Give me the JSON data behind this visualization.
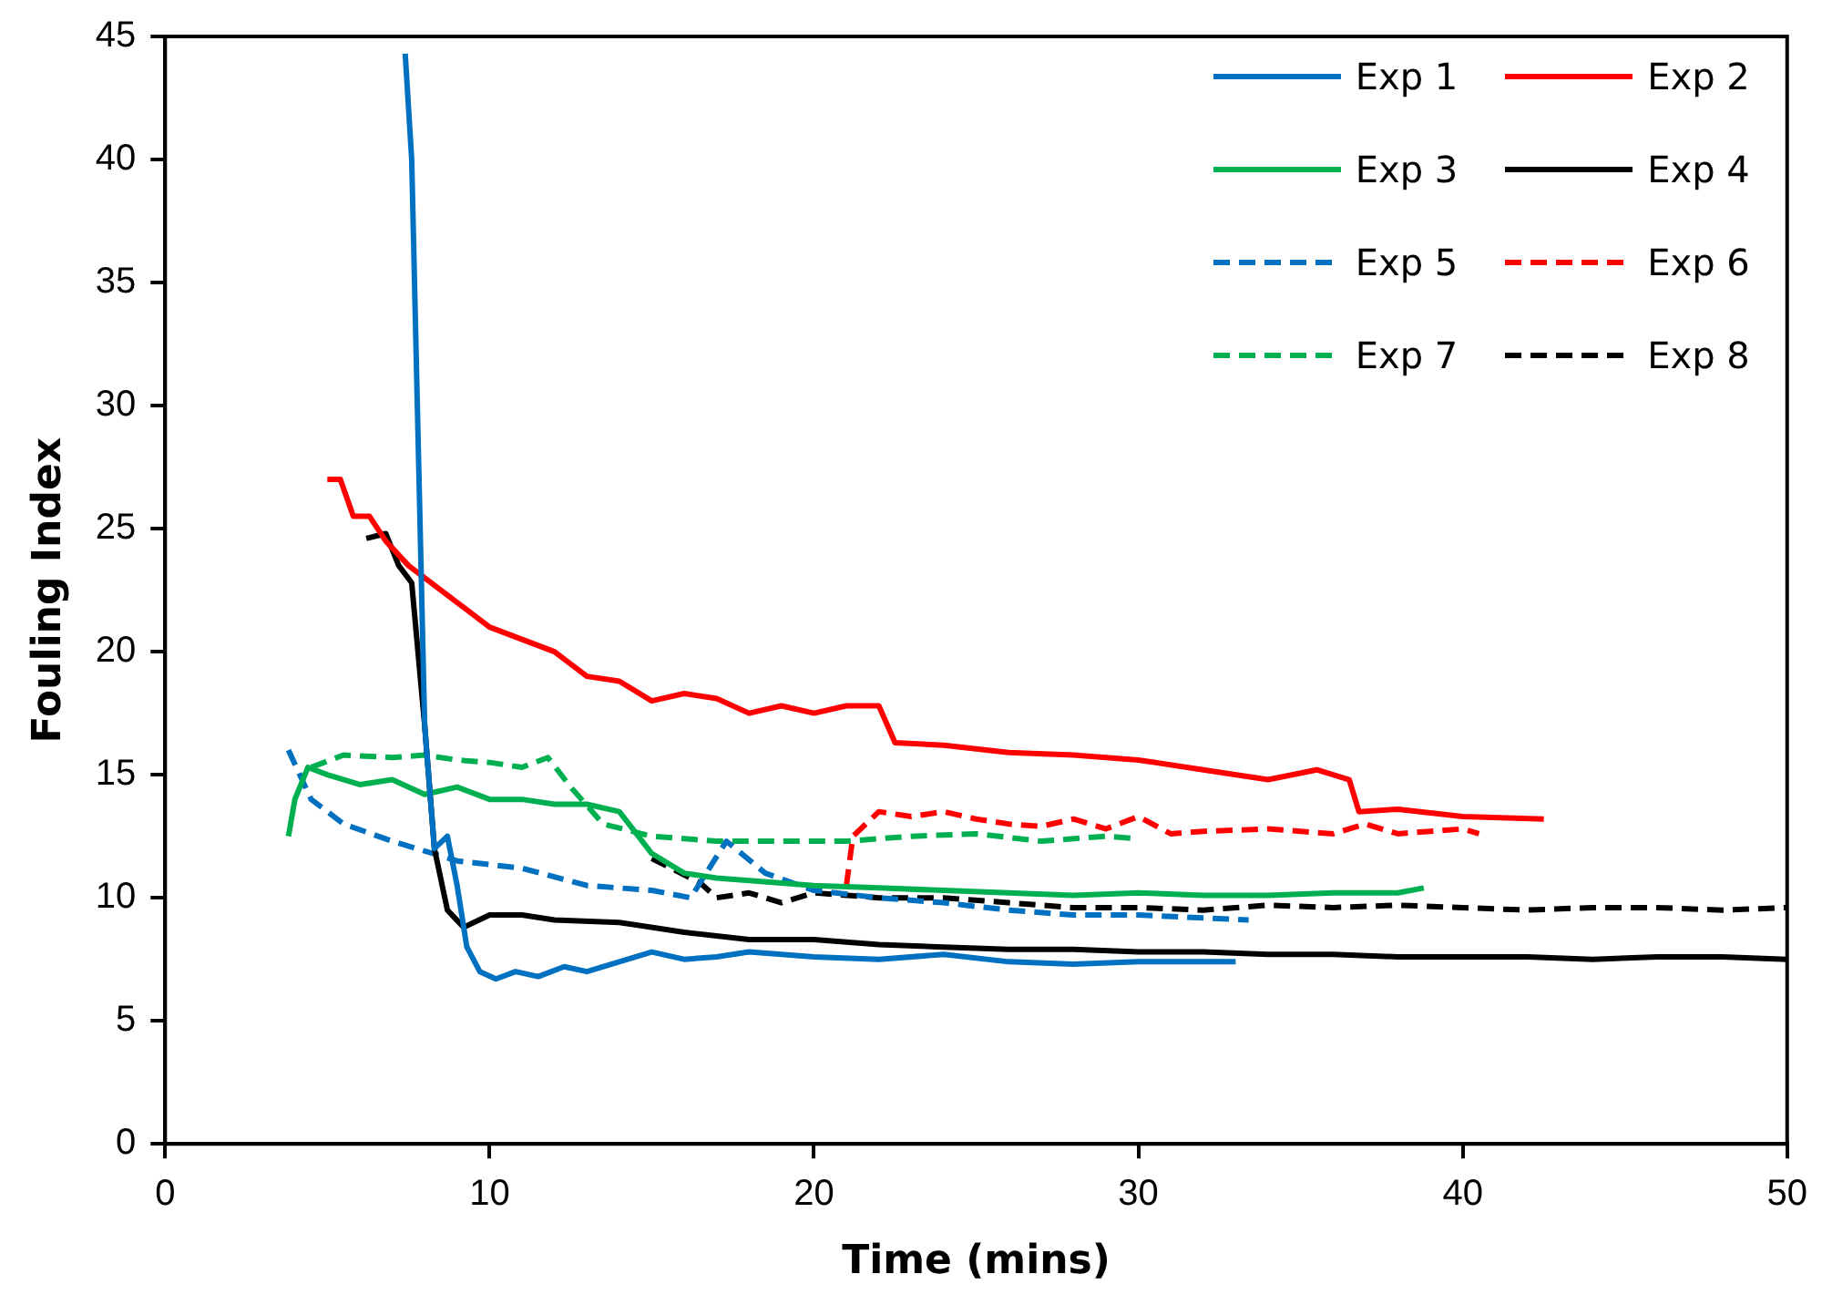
{
  "chart_data": {
    "type": "line",
    "xlabel": "Time (mins)",
    "ylabel": "Fouling Index",
    "xlim": [
      0,
      50
    ],
    "xticks": [
      0,
      10,
      20,
      30,
      40,
      50
    ],
    "ylim": [
      0,
      45
    ],
    "yticks": [
      0,
      5,
      10,
      15,
      20,
      25,
      30,
      35,
      40,
      45
    ],
    "grid": false,
    "legend": "top right",
    "marker": "none",
    "series": [
      {
        "name": "Exp 1",
        "color": "#0070c0",
        "line_style": "solid",
        "x": [
          7.4,
          7.6,
          8.0,
          8.3,
          8.7,
          9.0,
          9.3,
          9.7,
          10.2,
          10.8,
          11.5,
          12.3,
          13,
          14,
          15,
          16,
          17,
          18,
          20,
          22,
          24,
          26,
          28,
          30,
          33
        ],
        "values": [
          44.3,
          40,
          17,
          12,
          12.5,
          10.5,
          8,
          7,
          6.7,
          7,
          6.8,
          7.2,
          7.0,
          7.4,
          7.8,
          7.5,
          7.6,
          7.8,
          7.6,
          7.5,
          7.7,
          7.4,
          7.3,
          7.4,
          7.4
        ]
      },
      {
        "name": "Exp 2",
        "color": "#ff0000",
        "line_style": "solid",
        "x": [
          5.0,
          5.4,
          5.8,
          6.3,
          6.8,
          7.5,
          8,
          9,
          10,
          11,
          12,
          13,
          14,
          15,
          16,
          17,
          18,
          19,
          20,
          21,
          22,
          22.5,
          24,
          26,
          28,
          30,
          32,
          34,
          35.5,
          36.5,
          36.8,
          38,
          40,
          42.5
        ],
        "values": [
          27,
          27,
          25.5,
          25.5,
          24.5,
          23.5,
          23,
          22,
          21,
          20.5,
          20,
          19,
          18.8,
          18,
          18.3,
          18.1,
          17.5,
          17.8,
          17.5,
          17.8,
          17.8,
          16.3,
          16.2,
          15.9,
          15.8,
          15.6,
          15.2,
          14.8,
          15.2,
          14.8,
          13.5,
          13.6,
          13.3,
          13.2
        ]
      },
      {
        "name": "Exp 3",
        "color": "#00b050",
        "line_style": "solid",
        "x": [
          3.8,
          4.0,
          4.4,
          5,
          6,
          7,
          8,
          9,
          10,
          11,
          12,
          13,
          14,
          15,
          16,
          17,
          18,
          20,
          22,
          24,
          26,
          28,
          30,
          32,
          34,
          36,
          38,
          38.8
        ],
        "values": [
          12.5,
          14,
          15.3,
          15,
          14.6,
          14.8,
          14.2,
          14.5,
          14.0,
          14.0,
          13.8,
          13.8,
          13.5,
          11.8,
          11,
          10.8,
          10.7,
          10.5,
          10.4,
          10.3,
          10.2,
          10.1,
          10.2,
          10.1,
          10.1,
          10.2,
          10.2,
          10.4
        ]
      },
      {
        "name": "Exp 4",
        "color": "#000000",
        "line_style": "solid",
        "x": [
          6.2,
          6.8,
          7.2,
          7.6,
          8.0,
          8.3,
          8.7,
          9.2,
          10,
          11,
          12,
          14,
          16,
          18,
          20,
          22,
          24,
          26,
          28,
          30,
          32,
          34,
          36,
          38,
          40,
          42,
          44,
          46,
          48,
          50
        ],
        "values": [
          24.6,
          24.8,
          23.5,
          22.8,
          17,
          12,
          9.5,
          8.8,
          9.3,
          9.3,
          9.1,
          9.0,
          8.6,
          8.3,
          8.3,
          8.1,
          8.0,
          7.9,
          7.9,
          7.8,
          7.8,
          7.7,
          7.7,
          7.6,
          7.6,
          7.6,
          7.5,
          7.6,
          7.6,
          7.5
        ]
      },
      {
        "name": "Exp 5",
        "color": "#0070c0",
        "line_style": "dashed",
        "x": [
          3.8,
          4.5,
          5.5,
          7,
          9,
          11,
          13,
          15,
          16.2,
          17.3,
          18.5,
          20,
          22,
          24,
          26,
          28,
          30,
          33.4
        ],
        "values": [
          16,
          14,
          13,
          12.3,
          11.5,
          11.2,
          10.5,
          10.3,
          10.0,
          12.3,
          11,
          10.3,
          10.0,
          9.8,
          9.5,
          9.3,
          9.3,
          9.1
        ]
      },
      {
        "name": "Exp 6",
        "color": "#ff0000",
        "line_style": "dashed",
        "x": [
          21,
          21.2,
          22,
          23,
          24,
          25,
          26,
          27,
          28,
          29,
          30,
          31,
          32,
          34,
          36,
          37,
          38,
          40,
          40.5
        ],
        "values": [
          10.5,
          12.5,
          13.5,
          13.3,
          13.5,
          13.2,
          13.0,
          12.9,
          13.2,
          12.8,
          13.3,
          12.6,
          12.7,
          12.8,
          12.6,
          13.0,
          12.6,
          12.8,
          12.6
        ]
      },
      {
        "name": "Exp 7",
        "color": "#00b050",
        "line_style": "dashed",
        "x": [
          4.5,
          5.5,
          7,
          8,
          9,
          10,
          11,
          11.8,
          12.5,
          13.5,
          15,
          17,
          19,
          21,
          23,
          25,
          27,
          29,
          30
        ],
        "values": [
          15.3,
          15.8,
          15.7,
          15.8,
          15.6,
          15.5,
          15.3,
          15.7,
          14.5,
          13,
          12.5,
          12.3,
          12.3,
          12.3,
          12.5,
          12.6,
          12.3,
          12.5,
          12.4
        ]
      },
      {
        "name": "Exp 8",
        "color": "#000000",
        "line_style": "dashed",
        "x": [
          15,
          16.5,
          17,
          18,
          19,
          20,
          22,
          24,
          26,
          28,
          30,
          32,
          34,
          36,
          38,
          40,
          42,
          44,
          46,
          48,
          50
        ],
        "values": [
          11.6,
          10.6,
          10.0,
          10.2,
          9.8,
          10.2,
          10.0,
          10.0,
          9.8,
          9.6,
          9.6,
          9.5,
          9.7,
          9.6,
          9.7,
          9.6,
          9.5,
          9.6,
          9.6,
          9.5,
          9.6
        ]
      }
    ]
  }
}
